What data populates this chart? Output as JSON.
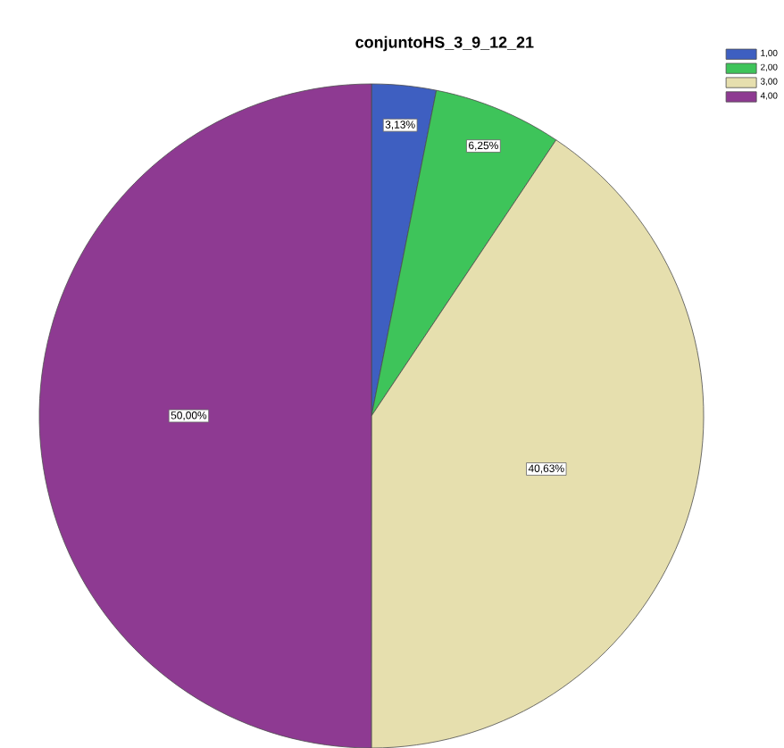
{
  "chart_data": {
    "type": "pie",
    "title": "conjuntoHS_3_9_12_21",
    "categories": [
      "1,00",
      "2,00",
      "3,00",
      "4,00"
    ],
    "values": [
      3.13,
      6.25,
      40.63,
      50.0
    ],
    "colors": [
      "#3e5fc1",
      "#3ec45a",
      "#e6dfae",
      "#8e3a92"
    ],
    "value_labels": [
      "3,13%",
      "6,25%",
      "40,63%",
      "50,00%"
    ],
    "legend": "top right"
  }
}
